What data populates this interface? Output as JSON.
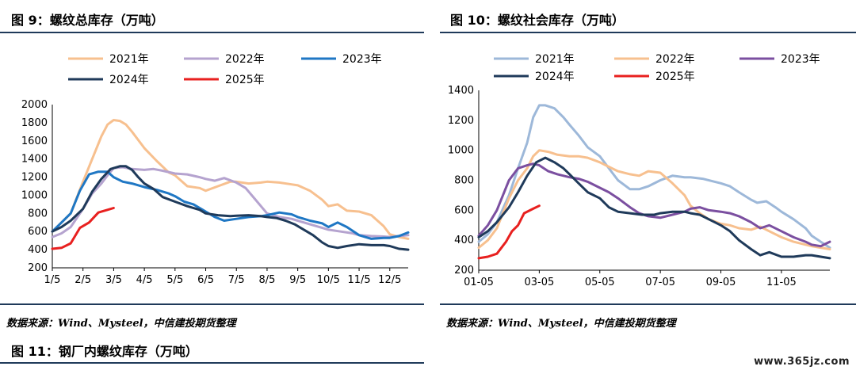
{
  "page": {
    "fig9_title": "图 9：螺纹总库存（万吨）",
    "fig10_title": "图 10：螺纹社会库存（万吨）",
    "fig11_title": "图 11：钢厂内螺纹库存（万吨）",
    "source_left": "数据来源：Wind、Mysteel，中信建投期货整理",
    "source_right": "数据来源：Wind、Mysteel，中信建投期货整理",
    "watermark": "www.365jz.com",
    "rule_color": "#1f3a5a"
  },
  "chart_data": [
    {
      "type": "line",
      "title": "图 9：螺纹总库存（万吨）",
      "ylim": [
        200,
        2000
      ],
      "yticks": [
        200,
        400,
        600,
        800,
        1000,
        1200,
        1400,
        1600,
        1800,
        2000
      ],
      "x_range": [
        0,
        11.6
      ],
      "x_ticks": [
        {
          "pos": 0,
          "label": "1/5"
        },
        {
          "pos": 1,
          "label": "2/5"
        },
        {
          "pos": 2,
          "label": "3/5"
        },
        {
          "pos": 3,
          "label": "4/5"
        },
        {
          "pos": 4,
          "label": "5/5"
        },
        {
          "pos": 5,
          "label": "6/5"
        },
        {
          "pos": 6,
          "label": "7/5"
        },
        {
          "pos": 7,
          "label": "8/5"
        },
        {
          "pos": 8,
          "label": "9/5"
        },
        {
          "pos": 9,
          "label": "10/5"
        },
        {
          "pos": 10,
          "label": "11/5"
        },
        {
          "pos": 11,
          "label": "12/5"
        }
      ],
      "legend_placement": "top",
      "series": [
        {
          "name": "2021年",
          "color": "#f7c08f",
          "x": [
            0,
            0.3,
            0.6,
            1,
            1.3,
            1.6,
            1.8,
            2,
            2.2,
            2.4,
            2.6,
            3,
            3.4,
            3.8,
            4,
            4.4,
            4.8,
            5,
            5.4,
            5.8,
            6,
            6.4,
            6.8,
            7,
            7.4,
            7.8,
            8,
            8.4,
            8.8,
            9,
            9.3,
            9.6,
            10,
            10.4,
            10.8,
            11,
            11.3,
            11.6
          ],
          "y": [
            600,
            700,
            800,
            1150,
            1400,
            1650,
            1780,
            1830,
            1820,
            1780,
            1700,
            1520,
            1380,
            1250,
            1220,
            1100,
            1080,
            1050,
            1100,
            1150,
            1150,
            1130,
            1140,
            1150,
            1140,
            1120,
            1110,
            1050,
            950,
            880,
            900,
            830,
            820,
            780,
            660,
            570,
            540,
            520
          ]
        },
        {
          "name": "2022年",
          "color": "#b5a3cf",
          "x": [
            0,
            0.3,
            0.6,
            1,
            1.3,
            1.6,
            1.8,
            2,
            2.3,
            2.6,
            3,
            3.3,
            3.6,
            4,
            4.4,
            4.8,
            5,
            5.3,
            5.6,
            6,
            6.3,
            6.6,
            7,
            7.4,
            7.8,
            8,
            8.4,
            8.8,
            9,
            9.4,
            9.8,
            10,
            10.4,
            10.8,
            11,
            11.3,
            11.6
          ],
          "y": [
            540,
            580,
            650,
            850,
            1020,
            1130,
            1220,
            1300,
            1310,
            1290,
            1280,
            1290,
            1270,
            1240,
            1230,
            1200,
            1180,
            1160,
            1190,
            1140,
            1080,
            960,
            800,
            760,
            740,
            720,
            680,
            640,
            620,
            600,
            580,
            560,
            550,
            545,
            540,
            550,
            560
          ]
        },
        {
          "name": "2023年",
          "color": "#1f77c4",
          "x": [
            0,
            0.3,
            0.6,
            0.9,
            1.2,
            1.5,
            1.8,
            2,
            2.3,
            2.6,
            3,
            3.4,
            3.8,
            4,
            4.3,
            4.6,
            5,
            5.3,
            5.6,
            6,
            6.4,
            6.8,
            7,
            7.4,
            7.8,
            8,
            8.4,
            8.8,
            9,
            9.3,
            9.6,
            10,
            10.4,
            10.8,
            11,
            11.3,
            11.6
          ],
          "y": [
            600,
            700,
            800,
            1050,
            1230,
            1260,
            1260,
            1200,
            1150,
            1130,
            1090,
            1060,
            1020,
            990,
            930,
            900,
            820,
            760,
            720,
            740,
            760,
            770,
            780,
            810,
            790,
            760,
            720,
            690,
            650,
            700,
            650,
            560,
            520,
            530,
            530,
            550,
            590
          ]
        },
        {
          "name": "2024年",
          "color": "#1f3a5a",
          "x": [
            0,
            0.3,
            0.6,
            1,
            1.3,
            1.6,
            1.9,
            2.2,
            2.4,
            2.6,
            2.8,
            3,
            3.3,
            3.6,
            4,
            4.4,
            4.8,
            5,
            5.4,
            5.8,
            6,
            6.4,
            6.8,
            7,
            7.3,
            7.6,
            7.9,
            8.2,
            8.5,
            8.8,
            9,
            9.3,
            9.6,
            10,
            10.4,
            10.8,
            11,
            11.3,
            11.6
          ],
          "y": [
            600,
            650,
            720,
            850,
            1040,
            1180,
            1290,
            1320,
            1320,
            1280,
            1200,
            1130,
            1070,
            980,
            930,
            880,
            840,
            800,
            780,
            770,
            775,
            780,
            770,
            760,
            750,
            720,
            680,
            620,
            560,
            480,
            440,
            420,
            440,
            460,
            450,
            450,
            440,
            410,
            400
          ]
        },
        {
          "name": "2025年",
          "color": "#e8201f",
          "x": [
            0,
            0.3,
            0.6,
            0.9,
            1.2,
            1.5,
            1.8,
            2
          ],
          "y": [
            410,
            420,
            470,
            640,
            700,
            810,
            840,
            860
          ]
        }
      ]
    },
    {
      "type": "line",
      "title": "图 10：螺纹社会库存（万吨）",
      "ylim": [
        200,
        1400
      ],
      "yticks": [
        200,
        400,
        600,
        800,
        1000,
        1200,
        1400
      ],
      "x_range": [
        0,
        11.6
      ],
      "x_ticks": [
        {
          "pos": 0,
          "label": "01-05"
        },
        {
          "pos": 2,
          "label": "03-05"
        },
        {
          "pos": 4,
          "label": "05-05"
        },
        {
          "pos": 6,
          "label": "07-05"
        },
        {
          "pos": 8,
          "label": "09-05"
        },
        {
          "pos": 10,
          "label": "11-05"
        }
      ],
      "legend_placement": "top",
      "series": [
        {
          "name": "2021年",
          "color": "#9db8d9",
          "x": [
            0,
            0.3,
            0.6,
            1,
            1.3,
            1.6,
            1.8,
            2,
            2.2,
            2.5,
            2.8,
            3,
            3.3,
            3.6,
            4,
            4.3,
            4.6,
            5,
            5.3,
            5.6,
            6,
            6.4,
            6.8,
            7,
            7.4,
            7.8,
            8,
            8.3,
            8.6,
            9,
            9.2,
            9.5,
            9.8,
            10,
            10.4,
            10.8,
            11,
            11.3,
            11.6
          ],
          "y": [
            390,
            440,
            520,
            700,
            880,
            1050,
            1220,
            1300,
            1300,
            1280,
            1220,
            1170,
            1100,
            1020,
            960,
            880,
            800,
            740,
            740,
            760,
            800,
            830,
            820,
            820,
            810,
            790,
            780,
            760,
            720,
            670,
            650,
            660,
            620,
            590,
            540,
            480,
            430,
            390,
            350
          ]
        },
        {
          "name": "2022年",
          "color": "#f7c08f",
          "x": [
            0,
            0.3,
            0.6,
            1,
            1.3,
            1.6,
            1.8,
            2,
            2.3,
            2.6,
            3,
            3.3,
            3.6,
            4,
            4.3,
            4.6,
            5,
            5.3,
            5.6,
            6,
            6.4,
            6.8,
            7,
            7.3,
            7.6,
            8,
            8.3,
            8.6,
            9,
            9.3,
            9.6,
            10,
            10.4,
            10.8,
            11,
            11.3,
            11.6
          ],
          "y": [
            350,
            400,
            480,
            680,
            800,
            880,
            960,
            1000,
            990,
            970,
            960,
            960,
            950,
            920,
            890,
            860,
            840,
            830,
            860,
            850,
            780,
            700,
            630,
            580,
            540,
            510,
            500,
            480,
            470,
            490,
            460,
            420,
            390,
            370,
            360,
            350,
            340
          ]
        },
        {
          "name": "2023年",
          "color": "#7b4fa0",
          "x": [
            0,
            0.3,
            0.6,
            1,
            1.3,
            1.6,
            1.8,
            2,
            2.3,
            2.6,
            3,
            3.3,
            3.6,
            4,
            4.3,
            4.6,
            5,
            5.3,
            5.6,
            6,
            6.4,
            6.8,
            7,
            7.3,
            7.6,
            8,
            8.3,
            8.6,
            9,
            9.3,
            9.6,
            10,
            10.4,
            10.8,
            11,
            11.3,
            11.6
          ],
          "y": [
            430,
            500,
            600,
            800,
            880,
            900,
            910,
            900,
            860,
            840,
            820,
            810,
            790,
            750,
            720,
            680,
            620,
            580,
            560,
            550,
            570,
            590,
            610,
            620,
            600,
            590,
            580,
            560,
            520,
            480,
            500,
            460,
            420,
            390,
            370,
            360,
            390
          ]
        },
        {
          "name": "2024年",
          "color": "#1f3a5a",
          "x": [
            0,
            0.3,
            0.6,
            1,
            1.3,
            1.6,
            1.9,
            2.2,
            2.5,
            2.8,
            3,
            3.3,
            3.6,
            4,
            4.3,
            4.6,
            5,
            5.4,
            5.8,
            6,
            6.4,
            6.8,
            7,
            7.3,
            7.6,
            8,
            8.3,
            8.6,
            9,
            9.3,
            9.6,
            10,
            10.4,
            10.8,
            11,
            11.3,
            11.6
          ],
          "y": [
            420,
            460,
            520,
            620,
            720,
            830,
            920,
            950,
            920,
            880,
            840,
            780,
            720,
            680,
            620,
            590,
            580,
            570,
            570,
            580,
            590,
            590,
            580,
            570,
            540,
            500,
            460,
            400,
            340,
            300,
            320,
            290,
            290,
            300,
            300,
            290,
            280
          ]
        },
        {
          "name": "2025年",
          "color": "#e8201f",
          "x": [
            0,
            0.3,
            0.6,
            0.9,
            1.1,
            1.3,
            1.5,
            1.8,
            2
          ],
          "y": [
            280,
            290,
            310,
            390,
            460,
            500,
            580,
            610,
            630
          ]
        }
      ]
    }
  ]
}
